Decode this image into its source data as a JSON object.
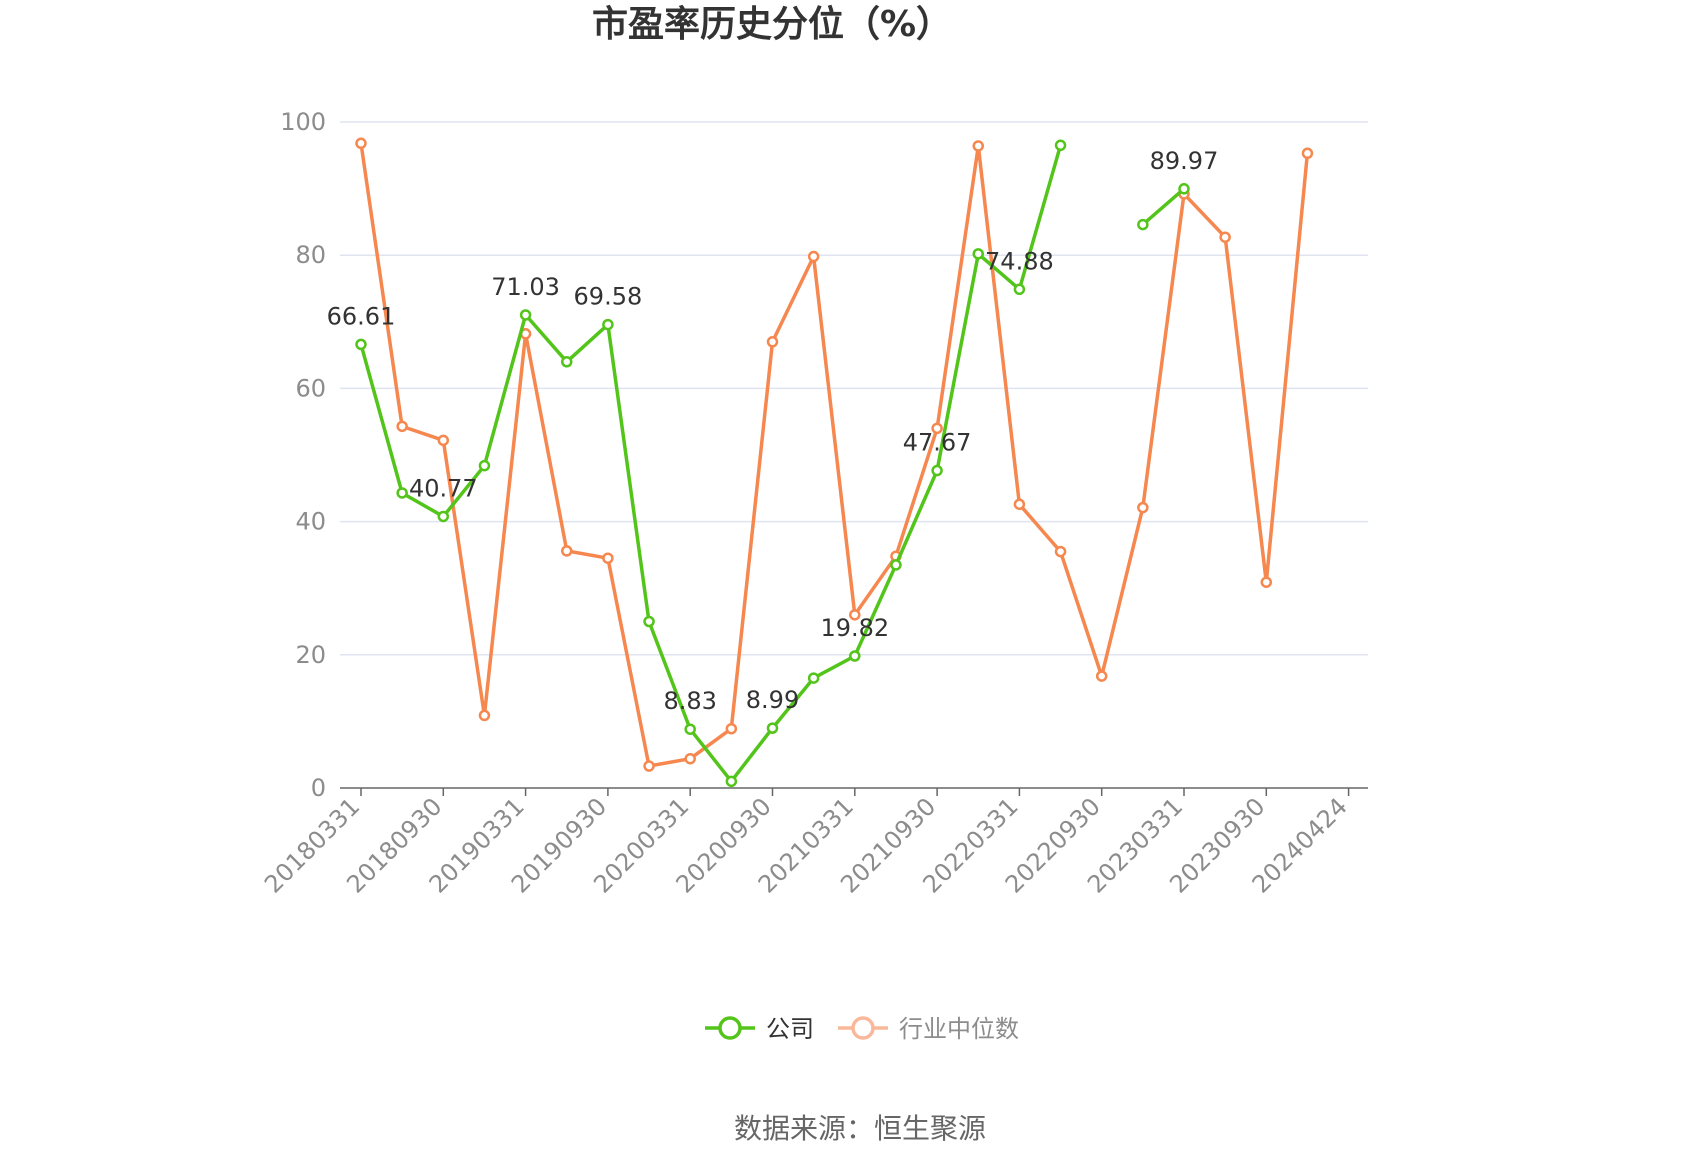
{
  "chart_data": {
    "type": "line",
    "title": "市盈率历史分位（%）",
    "source": "数据来源：恒生聚源",
    "ylim": [
      0,
      100
    ],
    "yticks": [
      "0",
      "20",
      "40",
      "60",
      "80",
      "100"
    ],
    "x": [
      "20180331",
      "20180630",
      "20180930",
      "20181231",
      "20190331",
      "20190630",
      "20190930",
      "20191231",
      "20200331",
      "20200630",
      "20200930",
      "20201231",
      "20210331",
      "20210630",
      "20210930",
      "20211231",
      "20220331",
      "20220630",
      "20220930",
      "20221231",
      "20230331",
      "20230630",
      "20230930",
      "20231231",
      "20240424"
    ],
    "xtick_labels": [
      "20180331",
      "20180930",
      "20190331",
      "20190930",
      "20200331",
      "20200930",
      "20210331",
      "20210930",
      "20220331",
      "20220930",
      "20230331",
      "20230930",
      "20240424"
    ],
    "grid": true,
    "legend_position": "bottom",
    "series": [
      {
        "name": "公司",
        "color": "#52c41a",
        "values": [
          66.61,
          44.3,
          40.77,
          48.4,
          71.03,
          64.0,
          69.58,
          25.0,
          8.83,
          1.0,
          8.99,
          16.5,
          19.82,
          33.5,
          47.67,
          80.2,
          74.88,
          96.5,
          null,
          84.6,
          89.97,
          null,
          null,
          null,
          null
        ],
        "labels": {
          "0": "66.61",
          "2": "40.77",
          "4": "71.03",
          "6": "69.58",
          "8": "8.83",
          "10": "8.99",
          "12": "19.82",
          "14": "47.67",
          "16": "74.88",
          "20": "89.97"
        }
      },
      {
        "name": "行业中位数",
        "color": "#f5874f",
        "values": [
          96.8,
          54.3,
          52.2,
          10.9,
          68.2,
          35.6,
          34.5,
          3.3,
          4.4,
          8.9,
          67.0,
          79.8,
          26.0,
          34.8,
          54.0,
          96.4,
          42.6,
          35.5,
          16.8,
          42.1,
          89.2,
          82.7,
          30.9,
          95.3,
          null
        ]
      }
    ]
  }
}
